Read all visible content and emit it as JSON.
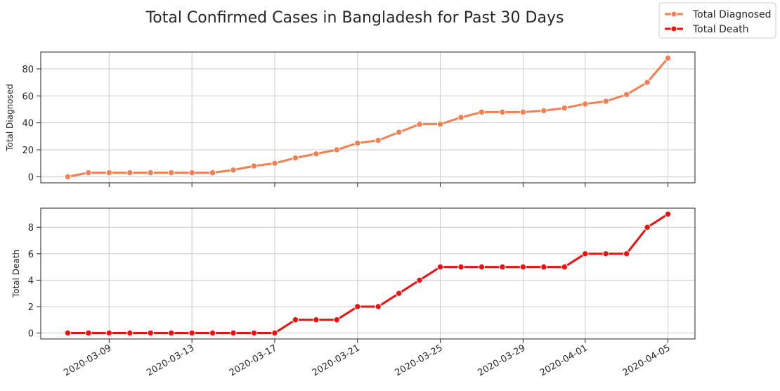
{
  "chart_data": {
    "type": "line",
    "title": "Total Confirmed Cases in Bangladesh for Past 30 Days",
    "x": [
      "2020-03-07",
      "2020-03-08",
      "2020-03-09",
      "2020-03-10",
      "2020-03-11",
      "2020-03-12",
      "2020-03-13",
      "2020-03-14",
      "2020-03-15",
      "2020-03-16",
      "2020-03-17",
      "2020-03-18",
      "2020-03-19",
      "2020-03-20",
      "2020-03-21",
      "2020-03-22",
      "2020-03-23",
      "2020-03-24",
      "2020-03-25",
      "2020-03-26",
      "2020-03-27",
      "2020-03-28",
      "2020-03-29",
      "2020-03-30",
      "2020-03-31",
      "2020-04-01",
      "2020-04-02",
      "2020-04-03",
      "2020-04-04",
      "2020-04-05"
    ],
    "xticks": [
      "2020-03-09",
      "2020-03-13",
      "2020-03-17",
      "2020-03-21",
      "2020-03-25",
      "2020-03-29",
      "2020-04-01",
      "2020-04-05"
    ],
    "legend": {
      "placement": "top-right",
      "entries": [
        "Total Diagnosed",
        "Total Death"
      ]
    },
    "grid": true,
    "panels": [
      {
        "ylabel": "Total Diagnosed",
        "series_name": "Total Diagnosed",
        "color": "#f47f50",
        "ylim": [
          -4.5,
          92.5
        ],
        "yticks": [
          0,
          20,
          40,
          60,
          80
        ],
        "values": [
          0,
          3,
          3,
          3,
          3,
          3,
          3,
          3,
          5,
          8,
          10,
          14,
          17,
          20,
          25,
          27,
          33,
          39,
          39,
          44,
          48,
          48,
          48,
          49,
          51,
          54,
          56,
          61,
          70,
          88
        ]
      },
      {
        "ylabel": "Total Death",
        "series_name": "Total Death",
        "color": "#ee1010",
        "ylim": [
          -0.45,
          9.45
        ],
        "yticks": [
          0,
          2,
          4,
          6,
          8
        ],
        "values": [
          0,
          0,
          0,
          0,
          0,
          0,
          0,
          0,
          0,
          0,
          0,
          1,
          1,
          1,
          2,
          2,
          3,
          4,
          5,
          5,
          5,
          5,
          5,
          5,
          5,
          6,
          6,
          6,
          8,
          9
        ]
      }
    ]
  }
}
